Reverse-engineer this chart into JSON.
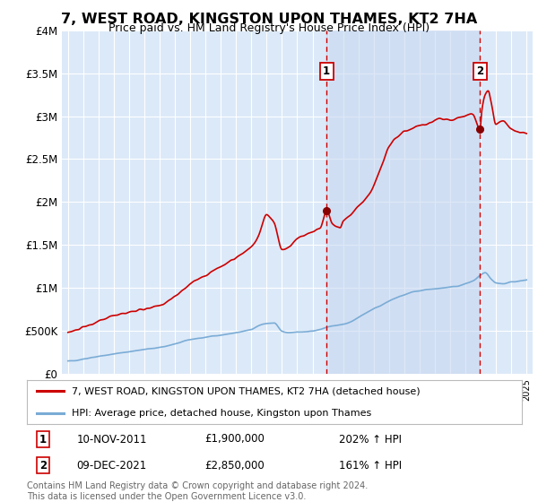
{
  "title": "7, WEST ROAD, KINGSTON UPON THAMES, KT2 7HA",
  "subtitle": "Price paid vs. HM Land Registry's House Price Index (HPI)",
  "ylim": [
    0,
    4000000
  ],
  "yticks": [
    0,
    500000,
    1000000,
    1500000,
    2000000,
    2500000,
    3000000,
    3500000,
    4000000
  ],
  "ytick_labels": [
    "£0",
    "£500K",
    "£1M",
    "£1.5M",
    "£2M",
    "£2.5M",
    "£3M",
    "£3.5M",
    "£4M"
  ],
  "xlim_start": 1994.6,
  "xlim_end": 2025.4,
  "background_color": "#dce9f8",
  "grid_color": "#ffffff",
  "red_line_color": "#cc0000",
  "blue_line_color": "#7aacd6",
  "shade_color": "#c8d8f0",
  "sale1_x": 2011.92,
  "sale1_y": 1900000,
  "sale2_x": 2021.95,
  "sale2_y": 2850000,
  "legend_line1": "7, WEST ROAD, KINGSTON UPON THAMES, KT2 7HA (detached house)",
  "legend_line2": "HPI: Average price, detached house, Kingston upon Thames",
  "sale1_date": "10-NOV-2011",
  "sale1_price": "£1,900,000",
  "sale1_hpi": "202% ↑ HPI",
  "sale2_date": "09-DEC-2021",
  "sale2_price": "£2,850,000",
  "sale2_hpi": "161% ↑ HPI",
  "footnote": "Contains HM Land Registry data © Crown copyright and database right 2024.\nThis data is licensed under the Open Government Licence v3.0."
}
